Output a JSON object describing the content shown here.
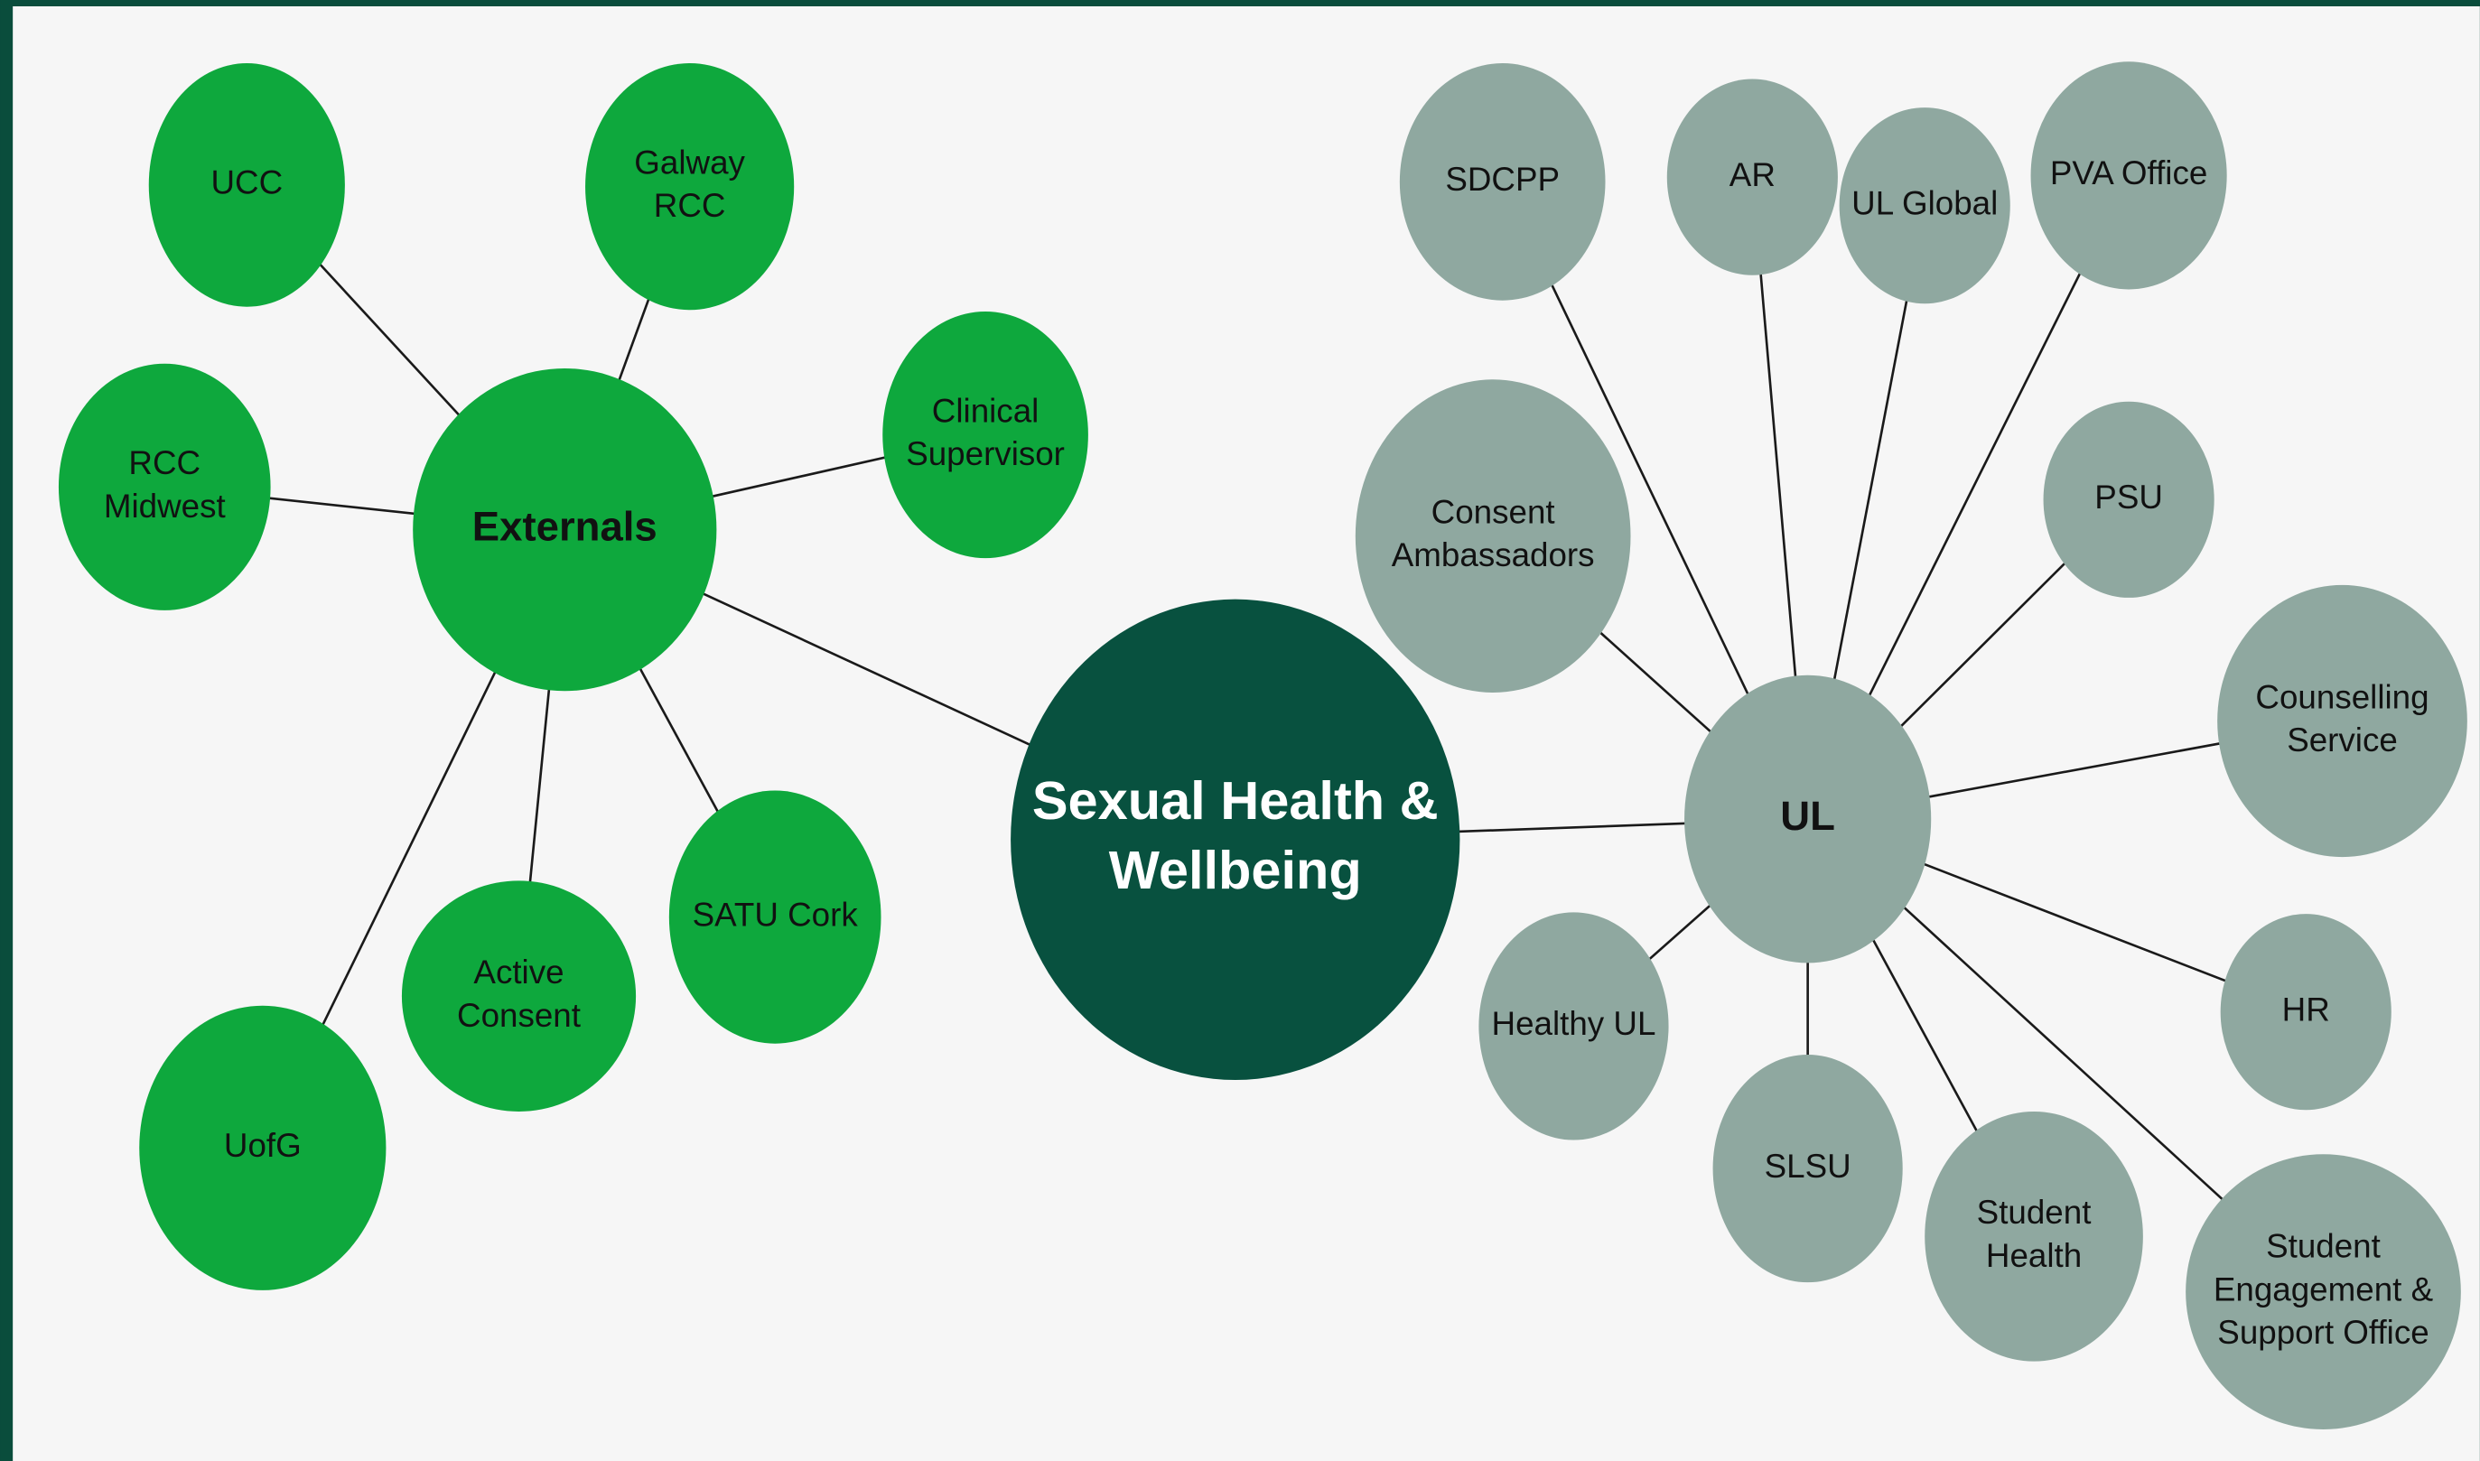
{
  "center": {
    "label": [
      "Sexual Health &",
      "Wellbeing"
    ]
  },
  "groups": [
    {
      "hub": {
        "label": [
          "Externals"
        ]
      },
      "nodes": [
        {
          "label": [
            "UCC"
          ]
        },
        {
          "label": [
            "Galway",
            "RCC"
          ]
        },
        {
          "label": [
            "Clinical",
            "Supervisor"
          ]
        },
        {
          "label": [
            "RCC",
            "Midwest"
          ]
        },
        {
          "label": [
            "SATU Cork"
          ]
        },
        {
          "label": [
            "Active",
            "Consent"
          ]
        },
        {
          "label": [
            "UofG"
          ]
        }
      ]
    },
    {
      "hub": {
        "label": [
          "UL"
        ]
      },
      "nodes": [
        {
          "label": [
            "SDCPP"
          ]
        },
        {
          "label": [
            "AR"
          ]
        },
        {
          "label": [
            "UL Global"
          ]
        },
        {
          "label": [
            "PVA Office"
          ]
        },
        {
          "label": [
            "PSU"
          ]
        },
        {
          "label": [
            "Consent",
            "Ambassadors"
          ]
        },
        {
          "label": [
            "Counselling",
            "Service"
          ]
        },
        {
          "label": [
            "HR"
          ]
        },
        {
          "label": [
            "Healthy UL"
          ]
        },
        {
          "label": [
            "SLSU"
          ]
        },
        {
          "label": [
            "Student",
            "Health"
          ]
        },
        {
          "label": [
            "Student",
            "Engagement &",
            "Support Office"
          ]
        }
      ]
    }
  ]
}
